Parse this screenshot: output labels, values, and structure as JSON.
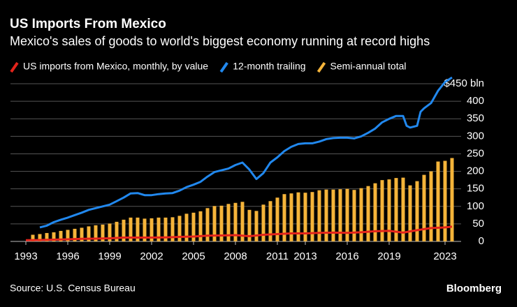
{
  "chart_data": {
    "type": "combo",
    "title": "US Imports From Mexico",
    "subtitle": "Mexico's sales of goods to world's biggest economy running at record highs",
    "source": "Source: U.S. Census Bureau",
    "brand": "Bloomberg",
    "xlim": [
      1992.8,
      2024.4
    ],
    "xticks": [
      1993,
      1996,
      1999,
      2002,
      2005,
      2008,
      2011,
      2013,
      2016,
      2019,
      2023
    ],
    "ylim": [
      0,
      470
    ],
    "yticks": [
      0,
      50,
      100,
      150,
      200,
      250,
      300,
      350,
      400,
      {
        "value": 450,
        "label": "$450 bln"
      }
    ],
    "grid": true,
    "series": [
      {
        "name": "US imports from Mexico, monthly, by value",
        "type": "line",
        "color": "#e3241b",
        "x": [
          1993,
          1994,
          1995,
          1996,
          1997,
          1998,
          1999,
          2000,
          2001,
          2002,
          2003,
          2004,
          2005,
          2006,
          2007,
          2008,
          2009,
          2010,
          2011,
          2012,
          2013,
          2014,
          2015,
          2016,
          2017,
          2018,
          2019,
          2020,
          2021,
          2022,
          2023,
          2023.5
        ],
        "values": [
          3.3,
          4,
          5,
          6,
          7.5,
          8,
          9,
          11,
          11,
          11,
          11.5,
          13,
          14,
          16.5,
          17,
          18,
          15,
          19,
          21,
          23,
          23,
          24.5,
          25,
          24.5,
          26,
          29,
          30,
          25,
          32,
          38,
          40,
          42
        ]
      },
      {
        "name": "12-month trailing",
        "type": "line",
        "color": "#2188ee",
        "x": [
          1994,
          1994.5,
          1995,
          1995.5,
          1996,
          1996.5,
          1997,
          1997.5,
          1998,
          1998.5,
          1999,
          1999.5,
          2000,
          2000.5,
          2001,
          2001.5,
          2002,
          2002.5,
          2003,
          2003.5,
          2004,
          2004.5,
          2005,
          2005.5,
          2006,
          2006.5,
          2007,
          2007.5,
          2008,
          2008.5,
          2009,
          2009.5,
          2010,
          2010.5,
          2011,
          2011.5,
          2012,
          2012.5,
          2013,
          2013.5,
          2014,
          2014.5,
          2015,
          2015.5,
          2016,
          2016.5,
          2017,
          2017.5,
          2018,
          2018.5,
          2019,
          2019.5,
          2020,
          2020.25,
          2020.5,
          2021,
          2021.25,
          2021.5,
          2022,
          2022.5,
          2023,
          2023.5
        ],
        "values": [
          40,
          45,
          55,
          62,
          68,
          75,
          82,
          90,
          95,
          100,
          105,
          115,
          125,
          137,
          138,
          132,
          132,
          135,
          137,
          138,
          145,
          155,
          162,
          170,
          185,
          198,
          203,
          208,
          218,
          225,
          205,
          178,
          195,
          225,
          240,
          258,
          270,
          278,
          280,
          280,
          285,
          292,
          295,
          296,
          296,
          294,
          300,
          310,
          322,
          340,
          350,
          358,
          358,
          330,
          325,
          330,
          370,
          380,
          395,
          430,
          455,
          468
        ]
      },
      {
        "name": "Semi-annual total",
        "type": "bar",
        "color": "#f5b43a",
        "x": [
          1993.5,
          1994,
          1994.5,
          1995,
          1995.5,
          1996,
          1996.5,
          1997,
          1997.5,
          1998,
          1998.5,
          1999,
          1999.5,
          2000,
          2000.5,
          2001,
          2001.5,
          2002,
          2002.5,
          2003,
          2003.5,
          2004,
          2004.5,
          2005,
          2005.5,
          2006,
          2006.5,
          2007,
          2007.5,
          2008,
          2008.5,
          2009,
          2009.5,
          2010,
          2010.5,
          2011,
          2011.5,
          2012,
          2012.5,
          2013,
          2013.5,
          2014,
          2014.5,
          2015,
          2015.5,
          2016,
          2016.5,
          2017,
          2017.5,
          2018,
          2018.5,
          2019,
          2019.5,
          2020,
          2020.5,
          2021,
          2021.5,
          2022,
          2022.5,
          2023,
          2023.5
        ],
        "values": [
          19,
          21,
          24,
          26,
          30,
          33,
          36,
          39,
          43,
          46,
          48,
          51,
          56,
          62,
          68,
          68,
          65,
          66,
          68,
          68,
          69,
          73,
          79,
          82,
          86,
          95,
          101,
          102,
          107,
          110,
          113,
          90,
          87,
          105,
          115,
          125,
          135,
          137,
          140,
          139,
          141,
          146,
          148,
          148,
          149,
          150,
          147,
          152,
          158,
          166,
          175,
          177,
          181,
          182,
          160,
          172,
          190,
          200,
          228,
          230,
          238
        ]
      }
    ]
  }
}
